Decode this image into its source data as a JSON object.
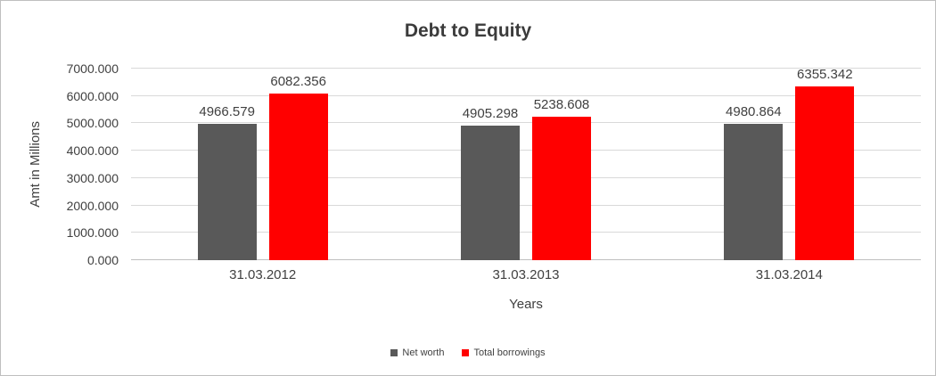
{
  "chart_data": {
    "type": "bar",
    "title": "Debt to Equity",
    "xlabel": "Years",
    "ylabel": "Amt in Millions",
    "categories": [
      "31.03.2012",
      "31.03.2013",
      "31.03.2014"
    ],
    "series": [
      {
        "name": "Net worth",
        "color": "#595959",
        "values": [
          4966.579,
          4905.298,
          4980.864
        ]
      },
      {
        "name": "Total borrowings",
        "color": "#ff0000",
        "values": [
          6082.356,
          5238.608,
          6355.342
        ]
      }
    ],
    "ylim": [
      0,
      7000
    ],
    "ytick_step": 1000,
    "ytick_labels": [
      "0.000",
      "1000.000",
      "2000.000",
      "3000.000",
      "4000.000",
      "5000.000",
      "6000.000",
      "7000.000"
    ],
    "grid": true,
    "legend_position": "bottom",
    "value_labels_shown": true,
    "value_label_decimals": 3
  },
  "colors": {
    "grid": "#d9d9d9",
    "axis_text": "#404040",
    "title_text": "#3b3b3b",
    "frame_border": "#bfbfbf"
  }
}
